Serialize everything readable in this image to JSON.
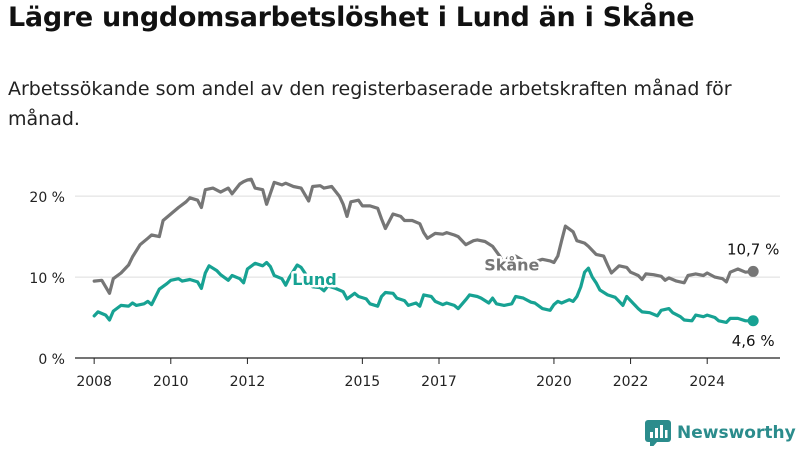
{
  "title": "Lägre ungdomsarbetslöshet i Lund än i Skåne",
  "subtitle": "Arbetssökande som andel av den registerbaserade arbetskraften månad för månad.",
  "brand": "Newsworthy",
  "colors": {
    "skane": "#767676",
    "lund": "#17a293",
    "grid": "#dddddd",
    "axis": "#222222",
    "brand": "#2b8c8c"
  },
  "chart_data": {
    "type": "line",
    "title": "Lägre ungdomsarbetslöshet i Lund än i Skåne",
    "subtitle": "Arbetssökande som andel av den registerbaserade arbetskraften månad för månad.",
    "xlabel": "",
    "ylabel": "",
    "xlim": [
      2007.5,
      2025.9
    ],
    "ylim": [
      0,
      22
    ],
    "y_ticks": [
      0,
      10,
      20
    ],
    "y_tick_labels": [
      "0 %",
      "10 %",
      "20 %"
    ],
    "x_ticks": [
      2008,
      2010,
      2012,
      2015,
      2017,
      2020,
      2022,
      2024
    ],
    "x_tick_labels": [
      "2008",
      "2010",
      "2012",
      "2015",
      "2017",
      "2020",
      "2022",
      "2024"
    ],
    "grid": true,
    "series": [
      {
        "name": "Skåne",
        "color": "#767676",
        "end_label": "10,7 %",
        "points": [
          [
            2008.0,
            9.5
          ],
          [
            2008.2,
            9.6
          ],
          [
            2008.4,
            8.0
          ],
          [
            2008.5,
            9.8
          ],
          [
            2008.7,
            10.5
          ],
          [
            2008.9,
            11.5
          ],
          [
            2009.0,
            12.5
          ],
          [
            2009.2,
            14.0
          ],
          [
            2009.4,
            14.8
          ],
          [
            2009.5,
            15.2
          ],
          [
            2009.7,
            15.0
          ],
          [
            2009.8,
            17.0
          ],
          [
            2010.0,
            17.8
          ],
          [
            2010.2,
            18.6
          ],
          [
            2010.4,
            19.3
          ],
          [
            2010.5,
            19.8
          ],
          [
            2010.7,
            19.5
          ],
          [
            2010.8,
            18.6
          ],
          [
            2010.9,
            20.8
          ],
          [
            2011.1,
            21.0
          ],
          [
            2011.3,
            20.5
          ],
          [
            2011.5,
            21.0
          ],
          [
            2011.6,
            20.3
          ],
          [
            2011.8,
            21.5
          ],
          [
            2011.9,
            21.8
          ],
          [
            2012.0,
            22.0
          ],
          [
            2012.1,
            22.1
          ],
          [
            2012.2,
            21.0
          ],
          [
            2012.4,
            20.8
          ],
          [
            2012.5,
            19.0
          ],
          [
            2012.7,
            21.7
          ],
          [
            2012.9,
            21.4
          ],
          [
            2013.0,
            21.6
          ],
          [
            2013.2,
            21.2
          ],
          [
            2013.4,
            21.0
          ],
          [
            2013.5,
            20.2
          ],
          [
            2013.6,
            19.4
          ],
          [
            2013.7,
            21.2
          ],
          [
            2013.9,
            21.3
          ],
          [
            2014.0,
            21.0
          ],
          [
            2014.2,
            21.2
          ],
          [
            2014.4,
            20.0
          ],
          [
            2014.5,
            19.0
          ],
          [
            2014.6,
            17.5
          ],
          [
            2014.7,
            19.3
          ],
          [
            2014.9,
            19.5
          ],
          [
            2015.0,
            18.8
          ],
          [
            2015.2,
            18.8
          ],
          [
            2015.4,
            18.5
          ],
          [
            2015.5,
            17.2
          ],
          [
            2015.6,
            16.0
          ],
          [
            2015.8,
            17.8
          ],
          [
            2016.0,
            17.5
          ],
          [
            2016.1,
            17.0
          ],
          [
            2016.3,
            17.0
          ],
          [
            2016.5,
            16.6
          ],
          [
            2016.6,
            15.5
          ],
          [
            2016.7,
            14.8
          ],
          [
            2016.9,
            15.4
          ],
          [
            2017.1,
            15.3
          ],
          [
            2017.2,
            15.5
          ],
          [
            2017.4,
            15.2
          ],
          [
            2017.5,
            15.0
          ],
          [
            2017.7,
            14.0
          ],
          [
            2017.9,
            14.5
          ],
          [
            2018.0,
            14.6
          ],
          [
            2018.2,
            14.4
          ],
          [
            2018.4,
            13.8
          ],
          [
            2018.6,
            12.5
          ],
          [
            2018.7,
            11.5
          ],
          [
            2018.8,
            12.4
          ],
          [
            2019.0,
            12.6
          ],
          [
            2019.2,
            12.0
          ],
          [
            2019.4,
            11.3
          ],
          [
            2019.5,
            11.9
          ],
          [
            2019.7,
            12.2
          ],
          [
            2019.9,
            12.0
          ],
          [
            2020.0,
            11.8
          ],
          [
            2020.1,
            12.6
          ],
          [
            2020.2,
            14.5
          ],
          [
            2020.3,
            16.3
          ],
          [
            2020.5,
            15.6
          ],
          [
            2020.6,
            14.5
          ],
          [
            2020.8,
            14.2
          ],
          [
            2020.9,
            13.8
          ],
          [
            2021.1,
            12.8
          ],
          [
            2021.3,
            12.6
          ],
          [
            2021.4,
            11.5
          ],
          [
            2021.5,
            10.5
          ],
          [
            2021.7,
            11.4
          ],
          [
            2021.9,
            11.2
          ],
          [
            2022.0,
            10.6
          ],
          [
            2022.2,
            10.2
          ],
          [
            2022.3,
            9.7
          ],
          [
            2022.4,
            10.4
          ],
          [
            2022.6,
            10.3
          ],
          [
            2022.8,
            10.1
          ],
          [
            2022.9,
            9.6
          ],
          [
            2023.0,
            9.9
          ],
          [
            2023.2,
            9.5
          ],
          [
            2023.4,
            9.3
          ],
          [
            2023.5,
            10.2
          ],
          [
            2023.7,
            10.4
          ],
          [
            2023.9,
            10.2
          ],
          [
            2024.0,
            10.5
          ],
          [
            2024.2,
            10.0
          ],
          [
            2024.4,
            9.8
          ],
          [
            2024.5,
            9.4
          ],
          [
            2024.6,
            10.6
          ],
          [
            2024.8,
            11.0
          ],
          [
            2025.0,
            10.6
          ],
          [
            2025.2,
            10.7
          ]
        ]
      },
      {
        "name": "Lund",
        "color": "#17a293",
        "end_label": "4,6 %",
        "points": [
          [
            2008.0,
            5.2
          ],
          [
            2008.1,
            5.7
          ],
          [
            2008.3,
            5.3
          ],
          [
            2008.4,
            4.7
          ],
          [
            2008.5,
            5.8
          ],
          [
            2008.7,
            6.5
          ],
          [
            2008.9,
            6.4
          ],
          [
            2009.0,
            6.8
          ],
          [
            2009.1,
            6.5
          ],
          [
            2009.3,
            6.7
          ],
          [
            2009.4,
            7.0
          ],
          [
            2009.5,
            6.6
          ],
          [
            2009.7,
            8.5
          ],
          [
            2009.9,
            9.2
          ],
          [
            2010.0,
            9.6
          ],
          [
            2010.2,
            9.8
          ],
          [
            2010.3,
            9.5
          ],
          [
            2010.5,
            9.7
          ],
          [
            2010.7,
            9.4
          ],
          [
            2010.8,
            8.6
          ],
          [
            2010.9,
            10.5
          ],
          [
            2011.0,
            11.4
          ],
          [
            2011.2,
            10.8
          ],
          [
            2011.3,
            10.3
          ],
          [
            2011.5,
            9.6
          ],
          [
            2011.6,
            10.2
          ],
          [
            2011.8,
            9.8
          ],
          [
            2011.9,
            9.3
          ],
          [
            2012.0,
            11.0
          ],
          [
            2012.2,
            11.7
          ],
          [
            2012.4,
            11.4
          ],
          [
            2012.5,
            11.8
          ],
          [
            2012.6,
            11.3
          ],
          [
            2012.7,
            10.2
          ],
          [
            2012.9,
            9.8
          ],
          [
            2013.0,
            9.0
          ],
          [
            2013.1,
            10.0
          ],
          [
            2013.3,
            11.5
          ],
          [
            2013.4,
            11.2
          ],
          [
            2013.6,
            9.8
          ],
          [
            2013.7,
            8.8
          ],
          [
            2013.9,
            8.7
          ],
          [
            2014.0,
            8.3
          ],
          [
            2014.1,
            8.9
          ],
          [
            2014.3,
            8.6
          ],
          [
            2014.5,
            8.2
          ],
          [
            2014.6,
            7.3
          ],
          [
            2014.8,
            8.0
          ],
          [
            2014.9,
            7.6
          ],
          [
            2015.1,
            7.3
          ],
          [
            2015.2,
            6.7
          ],
          [
            2015.4,
            6.4
          ],
          [
            2015.5,
            7.6
          ],
          [
            2015.6,
            8.1
          ],
          [
            2015.8,
            8.0
          ],
          [
            2015.9,
            7.4
          ],
          [
            2016.1,
            7.1
          ],
          [
            2016.2,
            6.5
          ],
          [
            2016.4,
            6.8
          ],
          [
            2016.5,
            6.4
          ],
          [
            2016.6,
            7.8
          ],
          [
            2016.8,
            7.6
          ],
          [
            2016.9,
            7.0
          ],
          [
            2017.1,
            6.6
          ],
          [
            2017.2,
            6.8
          ],
          [
            2017.4,
            6.5
          ],
          [
            2017.5,
            6.1
          ],
          [
            2017.7,
            7.2
          ],
          [
            2017.8,
            7.8
          ],
          [
            2018.0,
            7.6
          ],
          [
            2018.1,
            7.4
          ],
          [
            2018.3,
            6.8
          ],
          [
            2018.4,
            7.4
          ],
          [
            2018.5,
            6.7
          ],
          [
            2018.7,
            6.5
          ],
          [
            2018.9,
            6.7
          ],
          [
            2019.0,
            7.6
          ],
          [
            2019.2,
            7.4
          ],
          [
            2019.4,
            6.9
          ],
          [
            2019.5,
            6.8
          ],
          [
            2019.7,
            6.1
          ],
          [
            2019.9,
            5.9
          ],
          [
            2020.0,
            6.6
          ],
          [
            2020.1,
            7.0
          ],
          [
            2020.2,
            6.8
          ],
          [
            2020.4,
            7.2
          ],
          [
            2020.5,
            7.0
          ],
          [
            2020.6,
            7.6
          ],
          [
            2020.7,
            8.8
          ],
          [
            2020.8,
            10.6
          ],
          [
            2020.9,
            11.1
          ],
          [
            2021.0,
            10.0
          ],
          [
            2021.1,
            9.3
          ],
          [
            2021.2,
            8.4
          ],
          [
            2021.4,
            7.8
          ],
          [
            2021.6,
            7.5
          ],
          [
            2021.7,
            7.0
          ],
          [
            2021.8,
            6.5
          ],
          [
            2021.9,
            7.6
          ],
          [
            2022.0,
            7.1
          ],
          [
            2022.2,
            6.1
          ],
          [
            2022.3,
            5.7
          ],
          [
            2022.5,
            5.6
          ],
          [
            2022.7,
            5.2
          ],
          [
            2022.8,
            5.9
          ],
          [
            2023.0,
            6.1
          ],
          [
            2023.1,
            5.6
          ],
          [
            2023.3,
            5.1
          ],
          [
            2023.4,
            4.7
          ],
          [
            2023.6,
            4.6
          ],
          [
            2023.7,
            5.3
          ],
          [
            2023.9,
            5.1
          ],
          [
            2024.0,
            5.3
          ],
          [
            2024.2,
            5.0
          ],
          [
            2024.3,
            4.6
          ],
          [
            2024.5,
            4.4
          ],
          [
            2024.6,
            4.9
          ],
          [
            2024.8,
            4.9
          ],
          [
            2025.0,
            4.6
          ],
          [
            2025.2,
            4.6
          ]
        ]
      }
    ]
  }
}
